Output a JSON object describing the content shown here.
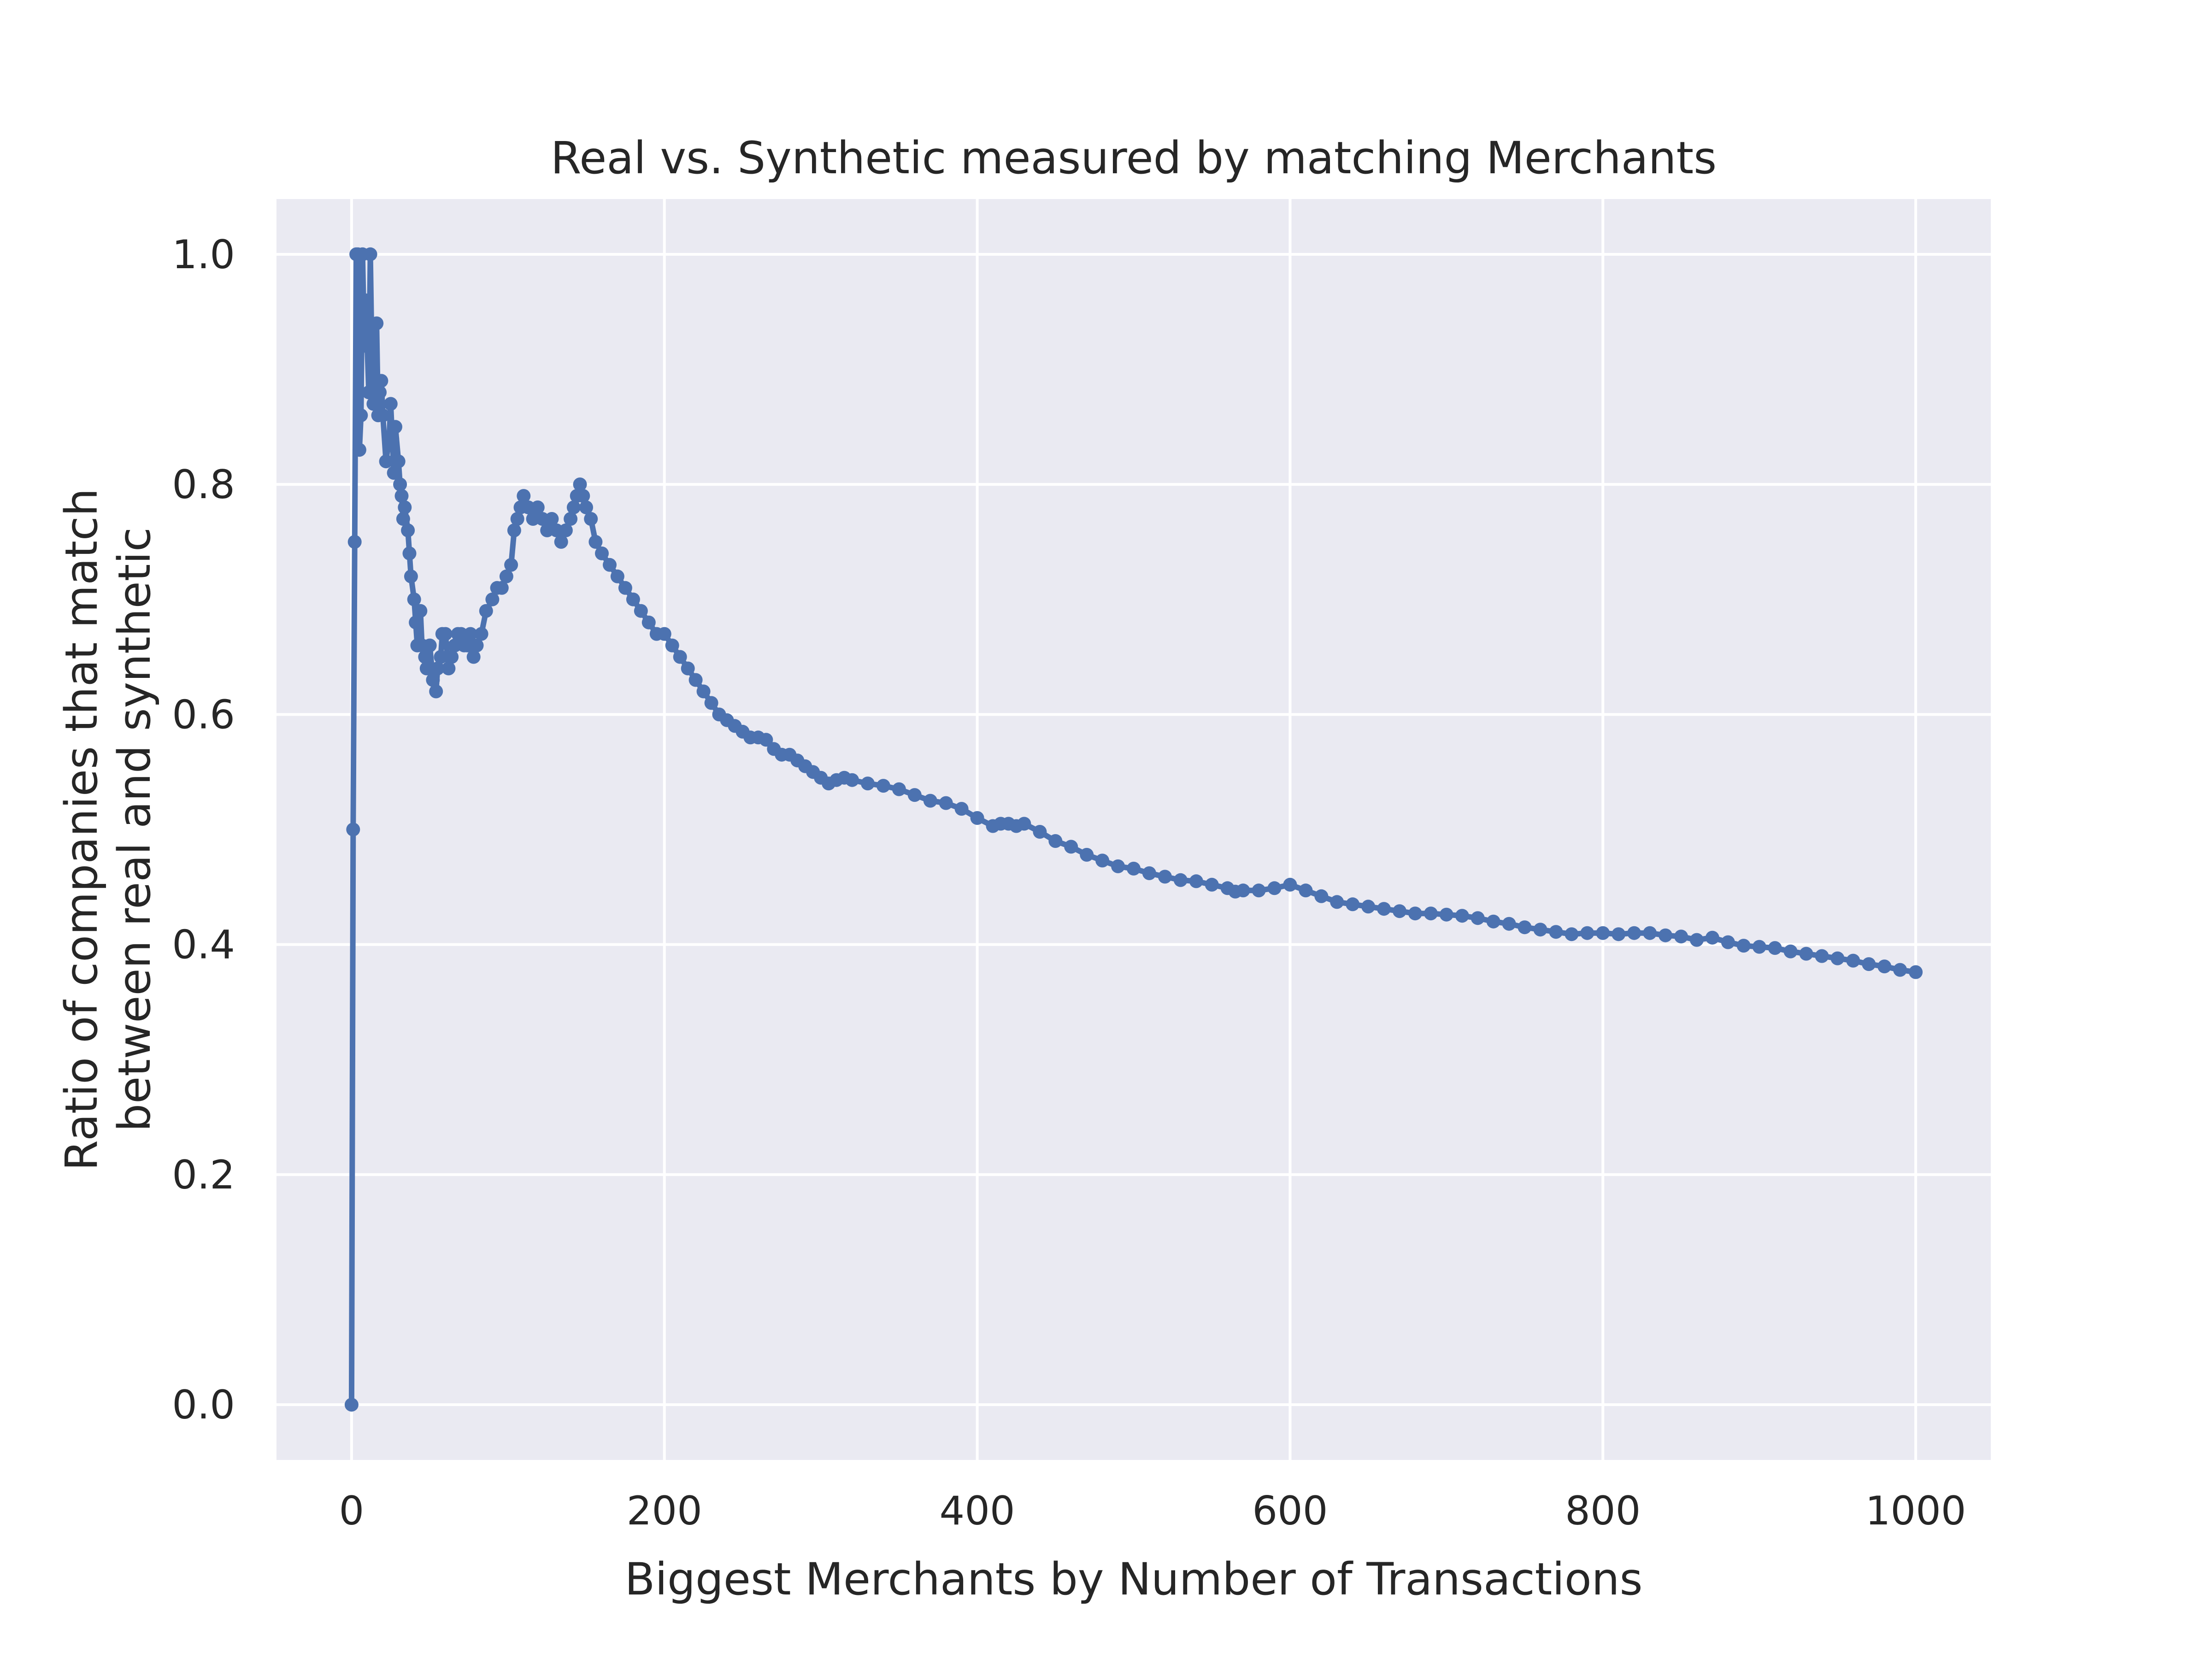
{
  "chart_data": {
    "type": "line",
    "title": "Real vs. Synthetic measured by matching Merchants",
    "xlabel": "Biggest Merchants by Number of Transactions",
    "ylabel_lines": [
      "Ratio of companies that match",
      "between real and synthetic"
    ],
    "xlim": [
      -48,
      1048
    ],
    "ylim": [
      -0.048,
      1.048
    ],
    "xticks": [
      0,
      200,
      400,
      600,
      800,
      1000
    ],
    "xtick_labels": [
      "0",
      "200",
      "400",
      "600",
      "800",
      "1000"
    ],
    "yticks": [
      0.0,
      0.2,
      0.4,
      0.6,
      0.8,
      1.0
    ],
    "ytick_labels": [
      "0.0",
      "0.2",
      "0.4",
      "0.6",
      "0.8",
      "1.0"
    ],
    "grid": true,
    "legend": "none",
    "colors": {
      "series": "#4c72b0",
      "plot_bg": "#eaeaf2",
      "grid": "#ffffff",
      "text": "#262626"
    },
    "series": [
      {
        "marker": "circle",
        "points": [
          [
            0,
            0.0
          ],
          [
            1,
            0.5
          ],
          [
            2,
            0.75
          ],
          [
            3,
            1.0
          ],
          [
            4,
            1.0
          ],
          [
            5,
            0.83
          ],
          [
            6,
            0.86
          ],
          [
            7,
            1.0
          ],
          [
            8,
            0.93
          ],
          [
            9,
            0.96
          ],
          [
            10,
            0.92
          ],
          [
            11,
            0.88
          ],
          [
            12,
            1.0
          ],
          [
            13,
            0.91
          ],
          [
            14,
            0.87
          ],
          [
            15,
            0.88
          ],
          [
            16,
            0.94
          ],
          [
            17,
            0.86
          ],
          [
            18,
            0.88
          ],
          [
            19,
            0.89
          ],
          [
            20,
            0.86
          ],
          [
            22,
            0.82
          ],
          [
            24,
            0.84
          ],
          [
            25,
            0.87
          ],
          [
            26,
            0.84
          ],
          [
            27,
            0.81
          ],
          [
            28,
            0.85
          ],
          [
            30,
            0.82
          ],
          [
            31,
            0.8
          ],
          [
            32,
            0.79
          ],
          [
            33,
            0.77
          ],
          [
            34,
            0.78
          ],
          [
            36,
            0.76
          ],
          [
            37,
            0.74
          ],
          [
            38,
            0.72
          ],
          [
            40,
            0.7
          ],
          [
            41,
            0.68
          ],
          [
            42,
            0.66
          ],
          [
            44,
            0.69
          ],
          [
            45,
            0.66
          ],
          [
            47,
            0.65
          ],
          [
            48,
            0.64
          ],
          [
            50,
            0.66
          ],
          [
            52,
            0.63
          ],
          [
            54,
            0.62
          ],
          [
            55,
            0.64
          ],
          [
            57,
            0.65
          ],
          [
            58,
            0.67
          ],
          [
            60,
            0.67
          ],
          [
            62,
            0.64
          ],
          [
            64,
            0.65
          ],
          [
            66,
            0.66
          ],
          [
            68,
            0.67
          ],
          [
            70,
            0.67
          ],
          [
            72,
            0.66
          ],
          [
            74,
            0.66
          ],
          [
            76,
            0.67
          ],
          [
            78,
            0.65
          ],
          [
            80,
            0.66
          ],
          [
            83,
            0.67
          ],
          [
            86,
            0.69
          ],
          [
            90,
            0.7
          ],
          [
            93,
            0.71
          ],
          [
            96,
            0.71
          ],
          [
            99,
            0.72
          ],
          [
            102,
            0.73
          ],
          [
            104,
            0.76
          ],
          [
            106,
            0.77
          ],
          [
            108,
            0.78
          ],
          [
            110,
            0.79
          ],
          [
            113,
            0.78
          ],
          [
            116,
            0.77
          ],
          [
            119,
            0.78
          ],
          [
            122,
            0.77
          ],
          [
            125,
            0.76
          ],
          [
            128,
            0.77
          ],
          [
            131,
            0.76
          ],
          [
            134,
            0.75
          ],
          [
            137,
            0.76
          ],
          [
            140,
            0.77
          ],
          [
            142,
            0.78
          ],
          [
            144,
            0.79
          ],
          [
            146,
            0.8
          ],
          [
            148,
            0.79
          ],
          [
            150,
            0.78
          ],
          [
            153,
            0.77
          ],
          [
            156,
            0.75
          ],
          [
            160,
            0.74
          ],
          [
            165,
            0.73
          ],
          [
            170,
            0.72
          ],
          [
            175,
            0.71
          ],
          [
            180,
            0.7
          ],
          [
            185,
            0.69
          ],
          [
            190,
            0.68
          ],
          [
            195,
            0.67
          ],
          [
            200,
            0.67
          ],
          [
            205,
            0.66
          ],
          [
            210,
            0.65
          ],
          [
            215,
            0.64
          ],
          [
            220,
            0.63
          ],
          [
            225,
            0.62
          ],
          [
            230,
            0.61
          ],
          [
            235,
            0.6
          ],
          [
            240,
            0.595
          ],
          [
            245,
            0.59
          ],
          [
            250,
            0.585
          ],
          [
            255,
            0.58
          ],
          [
            260,
            0.58
          ],
          [
            265,
            0.578
          ],
          [
            270,
            0.57
          ],
          [
            275,
            0.565
          ],
          [
            280,
            0.565
          ],
          [
            285,
            0.56
          ],
          [
            290,
            0.555
          ],
          [
            295,
            0.55
          ],
          [
            300,
            0.545
          ],
          [
            305,
            0.54
          ],
          [
            310,
            0.543
          ],
          [
            315,
            0.545
          ],
          [
            320,
            0.543
          ],
          [
            330,
            0.54
          ],
          [
            340,
            0.538
          ],
          [
            350,
            0.535
          ],
          [
            360,
            0.53
          ],
          [
            370,
            0.525
          ],
          [
            380,
            0.523
          ],
          [
            390,
            0.518
          ],
          [
            400,
            0.51
          ],
          [
            410,
            0.503
          ],
          [
            415,
            0.505
          ],
          [
            420,
            0.505
          ],
          [
            425,
            0.503
          ],
          [
            430,
            0.505
          ],
          [
            440,
            0.498
          ],
          [
            450,
            0.49
          ],
          [
            460,
            0.485
          ],
          [
            470,
            0.478
          ],
          [
            480,
            0.473
          ],
          [
            490,
            0.468
          ],
          [
            500,
            0.466
          ],
          [
            510,
            0.462
          ],
          [
            520,
            0.459
          ],
          [
            530,
            0.456
          ],
          [
            540,
            0.455
          ],
          [
            550,
            0.452
          ],
          [
            560,
            0.449
          ],
          [
            565,
            0.446
          ],
          [
            570,
            0.447
          ],
          [
            580,
            0.447
          ],
          [
            590,
            0.449
          ],
          [
            600,
            0.452
          ],
          [
            610,
            0.447
          ],
          [
            620,
            0.442
          ],
          [
            630,
            0.437
          ],
          [
            640,
            0.435
          ],
          [
            650,
            0.433
          ],
          [
            660,
            0.431
          ],
          [
            670,
            0.429
          ],
          [
            680,
            0.427
          ],
          [
            690,
            0.427
          ],
          [
            700,
            0.426
          ],
          [
            710,
            0.425
          ],
          [
            720,
            0.423
          ],
          [
            730,
            0.42
          ],
          [
            740,
            0.418
          ],
          [
            750,
            0.415
          ],
          [
            760,
            0.413
          ],
          [
            770,
            0.411
          ],
          [
            780,
            0.409
          ],
          [
            790,
            0.41
          ],
          [
            800,
            0.41
          ],
          [
            810,
            0.409
          ],
          [
            820,
            0.41
          ],
          [
            830,
            0.41
          ],
          [
            840,
            0.408
          ],
          [
            850,
            0.407
          ],
          [
            860,
            0.404
          ],
          [
            870,
            0.406
          ],
          [
            880,
            0.402
          ],
          [
            890,
            0.399
          ],
          [
            900,
            0.398
          ],
          [
            910,
            0.397
          ],
          [
            920,
            0.394
          ],
          [
            930,
            0.392
          ],
          [
            940,
            0.39
          ],
          [
            950,
            0.388
          ],
          [
            960,
            0.386
          ],
          [
            970,
            0.383
          ],
          [
            980,
            0.381
          ],
          [
            990,
            0.378
          ],
          [
            1000,
            0.376
          ]
        ]
      }
    ]
  }
}
